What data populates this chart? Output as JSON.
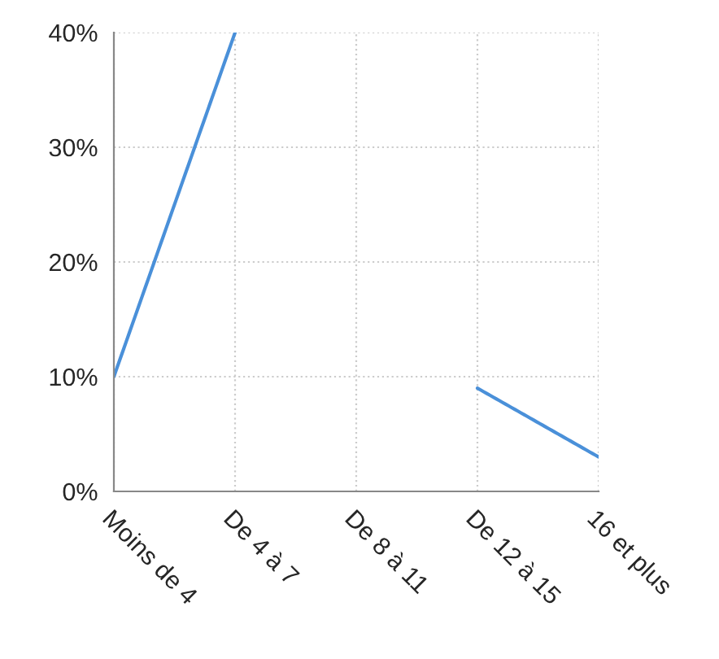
{
  "chart_data": {
    "type": "line",
    "categories": [
      "Moins de 4",
      "De 4 à 7",
      "De 8 à 11",
      "De 12 à 15",
      "16 et plus"
    ],
    "series": [
      {
        "color": "#4a90d9",
        "values": [
          10,
          40,
          null,
          9,
          3
        ]
      }
    ],
    "ylim": [
      0,
      40
    ],
    "yticks": [
      {
        "value": 0,
        "label": "0%"
      },
      {
        "value": 10,
        "label": "10%"
      },
      {
        "value": 20,
        "label": "20%"
      },
      {
        "value": 30,
        "label": "30%"
      },
      {
        "value": 40,
        "label": "40%"
      }
    ],
    "grid": true,
    "marker": "none",
    "line_style": "solid"
  }
}
